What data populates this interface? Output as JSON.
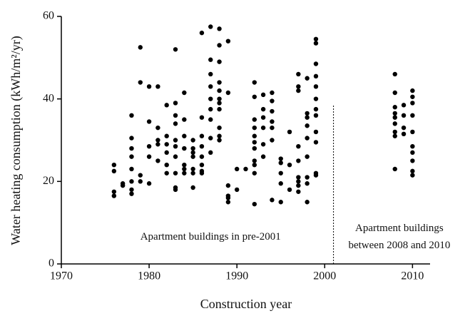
{
  "chart_data": {
    "type": "scatter",
    "x_label": "Construction year",
    "y_label": "Water heating consumption (kWh/m²/yr)",
    "xlim": [
      1970,
      2012
    ],
    "ylim": [
      0,
      60
    ],
    "xticks": [
      1970,
      1980,
      1990,
      2000,
      2010
    ],
    "yticks": [
      0,
      20,
      40,
      60
    ],
    "vline": 2001,
    "annotations": [
      {
        "text": [
          "Apartment buildings in pre-2001"
        ],
        "x": 1987,
        "y": 6.5
      },
      {
        "text": [
          "Apartment buildings",
          "between 2008 and 2010"
        ],
        "x": 2008.5,
        "y": 6.5
      }
    ],
    "series": [
      {
        "color": "#000000",
        "x": [
          1976,
          1976,
          1976,
          1976,
          1977,
          1977,
          1978,
          1978,
          1978,
          1978,
          1978,
          1978,
          1978,
          1978,
          1979,
          1979,
          1979,
          1979,
          1980,
          1980,
          1980,
          1980,
          1980,
          1981,
          1981,
          1981,
          1981,
          1981,
          1982,
          1982,
          1982,
          1982,
          1982,
          1982,
          1983,
          1983,
          1983,
          1983,
          1983,
          1983,
          1983,
          1983,
          1983,
          1983,
          1984,
          1984,
          1984,
          1984,
          1984,
          1984,
          1984,
          1985,
          1985,
          1985,
          1985,
          1985,
          1985,
          1985,
          1986,
          1986,
          1986,
          1986,
          1986,
          1986,
          1986,
          1986,
          1987,
          1987,
          1987,
          1987,
          1987,
          1987,
          1987,
          1987,
          1987,
          1988,
          1988,
          1988,
          1988,
          1988,
          1988,
          1988,
          1988,
          1988,
          1988,
          1988,
          1989,
          1989,
          1989,
          1989,
          1989,
          1989,
          1990,
          1990,
          1991,
          1992,
          1992,
          1992,
          1992,
          1992,
          1992,
          1992,
          1992,
          1992,
          1992,
          1992,
          1993,
          1993,
          1993,
          1993,
          1993,
          1993,
          1994,
          1994,
          1994,
          1994,
          1994,
          1994,
          1994,
          1995,
          1995,
          1995,
          1995,
          1995,
          1996,
          1996,
          1996,
          1997,
          1997,
          1997,
          1997,
          1997,
          1997,
          1997,
          1997,
          1997,
          1998,
          1998,
          1998,
          1998,
          1998,
          1998,
          1998,
          1998,
          1998,
          1999,
          1999,
          1999,
          1999,
          1999,
          1999,
          1999,
          1999,
          1999,
          1999,
          1999,
          1999,
          2008,
          2008,
          2008,
          2008,
          2008,
          2008,
          2008,
          2008,
          2008,
          2009,
          2009,
          2009,
          2009,
          2010,
          2010,
          2010,
          2010,
          2010,
          2010,
          2010,
          2010,
          2010,
          2010
        ],
        "values": [
          24,
          22.5,
          17.5,
          16.5,
          19.5,
          19,
          36,
          30.5,
          28,
          26,
          23,
          20,
          18,
          17,
          52.5,
          44,
          21.5,
          20,
          43,
          34.5,
          28.5,
          26,
          19.5,
          43,
          33,
          30,
          29,
          25,
          38.5,
          31,
          29,
          27,
          24,
          22,
          52,
          39,
          36,
          34,
          30,
          28.5,
          26,
          22,
          18.5,
          18,
          41.5,
          35,
          31,
          28,
          24,
          23,
          22,
          30,
          28,
          27,
          26,
          23,
          22,
          18.5,
          56,
          35.5,
          31,
          28.5,
          26,
          24,
          22.5,
          22,
          57.5,
          49.5,
          46,
          43,
          40,
          37.5,
          35,
          30.5,
          27,
          57,
          53,
          49,
          44,
          42,
          40,
          39,
          37.5,
          33,
          31,
          30,
          54,
          41.5,
          19,
          16.5,
          15,
          16,
          23,
          18,
          23,
          44,
          40.5,
          35,
          33,
          31,
          29.5,
          28,
          25,
          24,
          22,
          14.5,
          41,
          37.5,
          35.5,
          33,
          29,
          26,
          41.5,
          39.5,
          37,
          34.5,
          33,
          30,
          15.5,
          25.5,
          24.5,
          22,
          19.5,
          15,
          32,
          24,
          18,
          46,
          43,
          42,
          28.5,
          25,
          21,
          20,
          19,
          17.5,
          45,
          36.5,
          35.5,
          33.5,
          30.5,
          26,
          21,
          19.5,
          15,
          54.5,
          53.5,
          48.5,
          45.5,
          43,
          40,
          37.5,
          36,
          32,
          29.5,
          22,
          21.5,
          46,
          41.5,
          38,
          36.5,
          35.5,
          34,
          32,
          31,
          23,
          38.5,
          36,
          33,
          31.5,
          42,
          40.5,
          39,
          36,
          32,
          28.5,
          27,
          25,
          22.5,
          21.5
        ]
      }
    ]
  }
}
